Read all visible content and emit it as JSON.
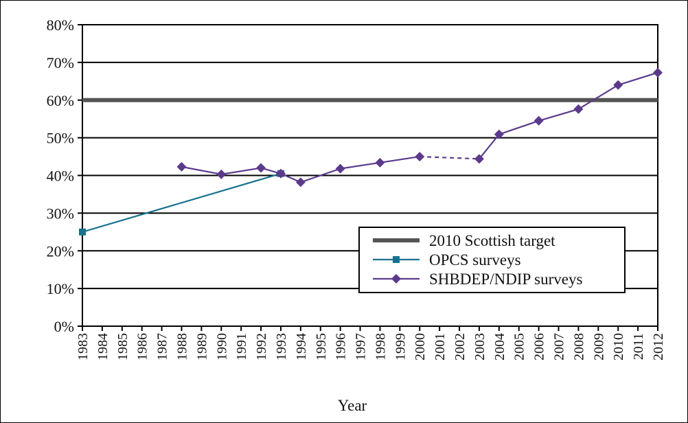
{
  "chart_data": {
    "type": "line",
    "xlabel": "Year",
    "ylabel": "",
    "ylim": [
      0,
      80
    ],
    "y_ticks": [
      "0%",
      "10%",
      "20%",
      "30%",
      "40%",
      "50%",
      "60%",
      "70%",
      "80%"
    ],
    "x_ticks": [
      "1983",
      "1984",
      "1985",
      "1986",
      "1987",
      "1988",
      "1989",
      "1990",
      "1991",
      "1992",
      "1993",
      "1994",
      "1995",
      "1996",
      "1997",
      "1998",
      "1999",
      "2000",
      "2001",
      "2002",
      "2003",
      "2004",
      "2005",
      "2006",
      "2007",
      "2008",
      "2009",
      "2010",
      "2011",
      "2012"
    ],
    "grid": "horizontal",
    "legend_position": "bottom-right",
    "target": {
      "name": "2010 Scottish target",
      "value": 60,
      "color": "#555555"
    },
    "series": [
      {
        "name": "OPCS surveys",
        "color": "#17728f",
        "marker": "square",
        "points": [
          {
            "x": "1983",
            "y": 25
          },
          {
            "x": "1993",
            "y": 40.5
          }
        ]
      },
      {
        "name": "SHBDEP/NDIP surveys",
        "color": "#5b3a8c",
        "marker": "diamond",
        "dashed_segments": [
          [
            "2000",
            "2003"
          ]
        ],
        "points": [
          {
            "x": "1988",
            "y": 42.3
          },
          {
            "x": "1990",
            "y": 40.3
          },
          {
            "x": "1992",
            "y": 42
          },
          {
            "x": "1993",
            "y": 40.5
          },
          {
            "x": "1994",
            "y": 38.2
          },
          {
            "x": "1996",
            "y": 41.8
          },
          {
            "x": "1998",
            "y": 43.4
          },
          {
            "x": "2000",
            "y": 45
          },
          {
            "x": "2003",
            "y": 44.4
          },
          {
            "x": "2004",
            "y": 50.9
          },
          {
            "x": "2006",
            "y": 54.5
          },
          {
            "x": "2008",
            "y": 57.6
          },
          {
            "x": "2010",
            "y": 64
          },
          {
            "x": "2012",
            "y": 67.3
          }
        ]
      }
    ]
  }
}
